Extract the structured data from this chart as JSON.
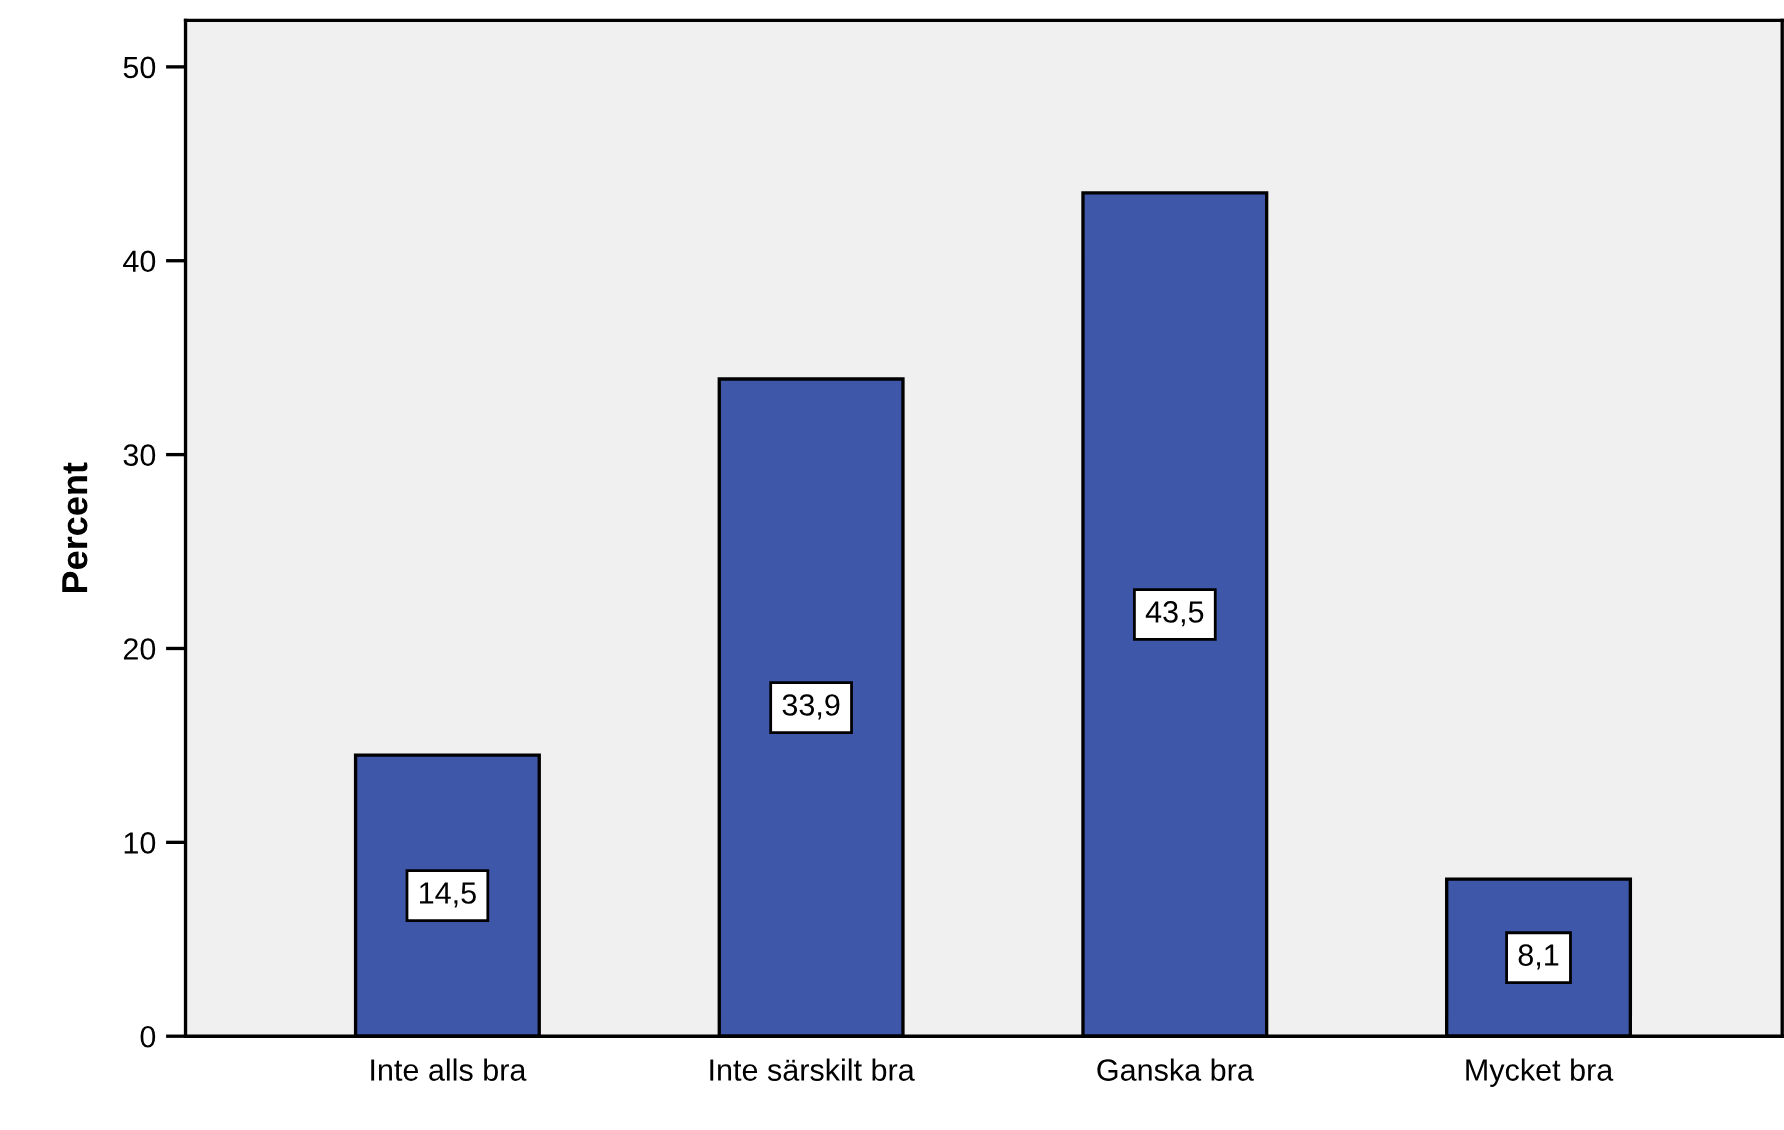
{
  "chart_data": {
    "type": "bar",
    "ylabel": "Percent",
    "categories": [
      "Inte alls bra",
      "Inte särskilt bra",
      "Ganska bra",
      "Mycket bra"
    ],
    "values": [
      14.5,
      33.9,
      43.5,
      8.1
    ],
    "value_labels": [
      "14,5",
      "33,9",
      "43,5",
      "8,1"
    ],
    "color": "#3f57a8",
    "ylim": [
      0,
      52.4
    ],
    "yticks": [
      0,
      10,
      20,
      30,
      40,
      50
    ],
    "grid": false
  }
}
